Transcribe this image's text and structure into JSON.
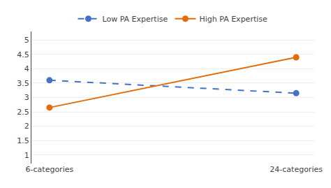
{
  "chart_data": {
    "type": "line",
    "categories": [
      "6-categories",
      "24-categories"
    ],
    "series": [
      {
        "name": "Low PA Expertise",
        "color": "#4472C4",
        "line_style": "dashed",
        "marker": "circle",
        "values": [
          3.6,
          3.15
        ]
      },
      {
        "name": "High PA Expertise",
        "color": "#E36C09",
        "line_style": "solid",
        "marker": "circle",
        "values": [
          2.65,
          4.4
        ]
      }
    ],
    "ylim": [
      0.7,
      5.3
    ],
    "yticks": [
      1,
      1.5,
      2,
      2.5,
      3,
      3.5,
      4,
      4.5,
      5
    ],
    "grid": true,
    "legend": "top"
  }
}
